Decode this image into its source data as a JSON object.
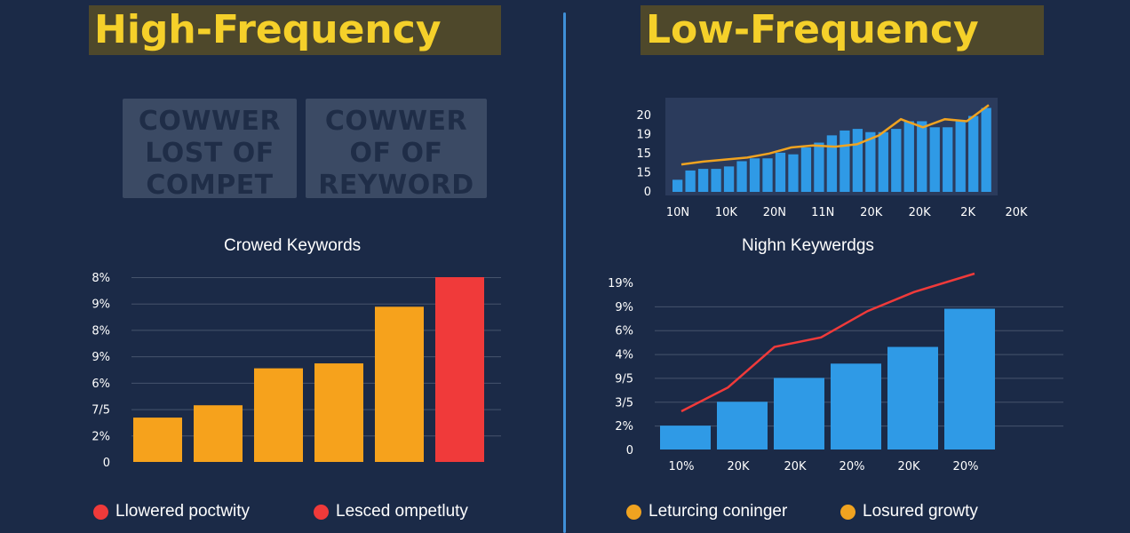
{
  "colors": {
    "background": "#1b2a47",
    "orange": "#f6a21c",
    "red": "#f03a3a",
    "blue": "#2f9ae6",
    "gold_line": "#f0a320",
    "title_yellow": "#f5d02a",
    "gridline": "#46536c"
  },
  "left": {
    "title": "High-Frequency",
    "box1": [
      "COWWER",
      "LOST OF",
      "COMPET"
    ],
    "box2": [
      "COWWER",
      "OF OF",
      "REYWORD"
    ],
    "legend": [
      {
        "label": "Llowered poctwity",
        "color": "#f03a3a"
      },
      {
        "label": "Lesced ompetluty",
        "color": "#f03a3a"
      }
    ]
  },
  "right": {
    "title": "Low-Frequency",
    "legend": [
      {
        "label": "Leturcing coninger",
        "color": "#f0a320"
      },
      {
        "label": "Losured growty",
        "color": "#f0a320"
      }
    ]
  },
  "chart_data": [
    {
      "type": "bar",
      "title": "Crowed Keywords",
      "y_tick_labels": [
        "8%",
        "9%",
        "8%",
        "9%",
        "6%",
        "7/5",
        "2%",
        "0"
      ],
      "grid": true,
      "values": [
        1.8,
        2.3,
        3.8,
        4.0,
        6.3,
        7.5
      ],
      "colors": [
        "#f6a21c",
        "#f6a21c",
        "#f6a21c",
        "#f6a21c",
        "#f6a21c",
        "#f03a3a"
      ],
      "ylim": [
        0,
        7.5
      ]
    },
    {
      "type": "bar",
      "subtype": "bar_with_line",
      "title": "",
      "y_tick_labels": [
        "20",
        "19",
        "15",
        "15",
        "0"
      ],
      "x_tick_labels": [
        "10N",
        "10K",
        "20N",
        "11N",
        "20K",
        "20K",
        "2K",
        "20K"
      ],
      "values": [
        3.0,
        5.3,
        5.7,
        5.7,
        6.3,
        7.6,
        8.3,
        8.3,
        9.7,
        9.3,
        11.0,
        12.2,
        14.0,
        15.2,
        15.6,
        14.8,
        14.8,
        15.6,
        17.5,
        17.5,
        16.0,
        16.0,
        17.5,
        18.8,
        20.8
      ],
      "line": [
        6.8,
        7.5,
        8.0,
        8.5,
        9.5,
        11.0,
        11.5,
        11.2,
        11.8,
        14.0,
        18.0,
        16.0,
        18.0,
        17.5,
        21.5
      ],
      "ylim": [
        0,
        22
      ]
    },
    {
      "type": "bar",
      "subtype": "bar_with_line",
      "title": "Nighn Keywerdgs",
      "y_tick_labels": [
        "19%",
        "9%",
        "6%",
        "4%",
        "9/5",
        "3/5",
        "2%",
        "0"
      ],
      "x_tick_labels": [
        "10%",
        "20K",
        "20K",
        "20%",
        "20K",
        "20%"
      ],
      "values": [
        1.0,
        2.0,
        3.0,
        3.6,
        4.3,
        5.9
      ],
      "line": [
        1.6,
        2.6,
        4.3,
        4.7,
        5.8,
        6.6
      ],
      "ylim": [
        0,
        7.0
      ]
    }
  ]
}
